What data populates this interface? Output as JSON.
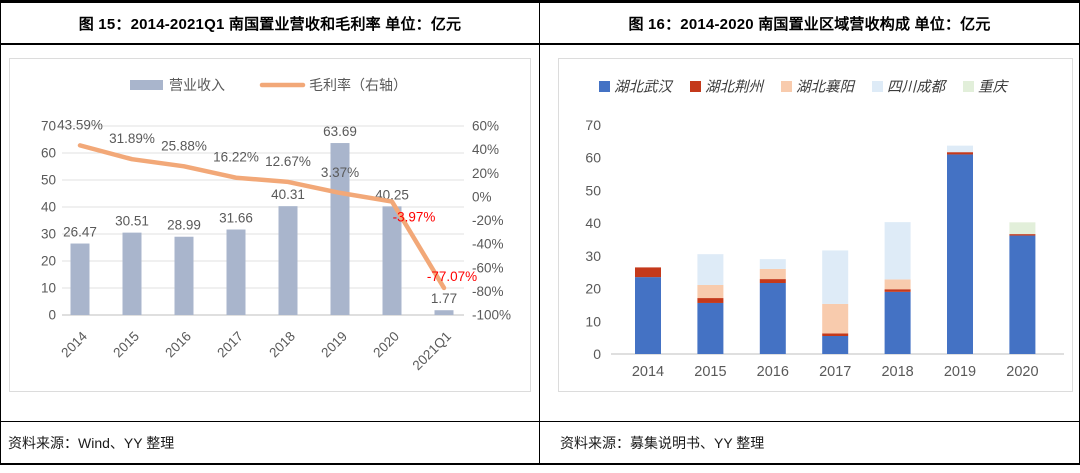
{
  "panels": [
    {
      "title": "图 15：2014-2021Q1 南国置业营收和毛利率 单位：亿元",
      "source": "资料来源：Wind、YY 整理"
    },
    {
      "title": "图 16：2014-2020 南国置业区域营收构成 单位：亿元",
      "source": "资料来源：募集说明书、YY 整理"
    }
  ],
  "chart_data": [
    {
      "type": "combo-bar-line",
      "title": "2014-2021Q1 南国置业营收和毛利率（亿元）",
      "categories": [
        "2014",
        "2015",
        "2016",
        "2017",
        "2018",
        "2019",
        "2020",
        "2021Q1"
      ],
      "series": [
        {
          "name": "营业收入",
          "type": "bar",
          "axis": "left",
          "color": "#A9B5CC",
          "values": [
            26.47,
            30.51,
            28.99,
            31.66,
            40.31,
            63.69,
            40.25,
            1.77
          ]
        },
        {
          "name": "毛利率（右轴）",
          "type": "line",
          "axis": "right",
          "color": "#F2A878",
          "values": [
            43.59,
            31.89,
            25.88,
            16.22,
            12.67,
            3.37,
            -3.97,
            -77.07
          ]
        }
      ],
      "left_axis": {
        "min": 0,
        "max": 70,
        "step": 10
      },
      "right_axis": {
        "min": -100,
        "max": 60,
        "step": 20,
        "suffix": "%"
      },
      "label_color": "#595959",
      "negative_label_color": "#FF0000",
      "grid": true,
      "legend_position": "top",
      "label_offsets": {
        "6": [
          22,
          20
        ],
        "7": [
          8,
          -7
        ]
      }
    },
    {
      "type": "stacked-bar",
      "title": "2014-2020 南国置业区域营收构成（亿元）",
      "categories": [
        "2014",
        "2015",
        "2016",
        "2017",
        "2018",
        "2019",
        "2020"
      ],
      "series": [
        {
          "name": "湖北武汉",
          "color": "#4472C4",
          "values": [
            23.5,
            15.6,
            21.7,
            5.5,
            19.0,
            61.0,
            36.2
          ]
        },
        {
          "name": "湖北荆州",
          "color": "#C4391B",
          "values": [
            2.97,
            1.5,
            1.2,
            0.8,
            0.8,
            0.7,
            0.45
          ]
        },
        {
          "name": "湖北襄阳",
          "color": "#F8CBAD",
          "values": [
            0,
            4.0,
            3.1,
            9.0,
            3.0,
            0,
            0
          ]
        },
        {
          "name": "四川成都",
          "color": "#DEEBF7",
          "values": [
            0,
            9.41,
            2.99,
            16.36,
            17.51,
            1.99,
            0
          ]
        },
        {
          "name": "重庆",
          "color": "#E2EFDA",
          "values": [
            0,
            0,
            0,
            0,
            0,
            0,
            3.6
          ]
        }
      ],
      "y_axis": {
        "min": 0,
        "max": 70,
        "step": 10
      },
      "tick_color": "#595959",
      "grid": false,
      "legend_position": "top"
    }
  ],
  "style_colors": {
    "grid_line": "#E2E2E2",
    "axis_line": "#BFBFBF",
    "tick_text": "#595959"
  }
}
